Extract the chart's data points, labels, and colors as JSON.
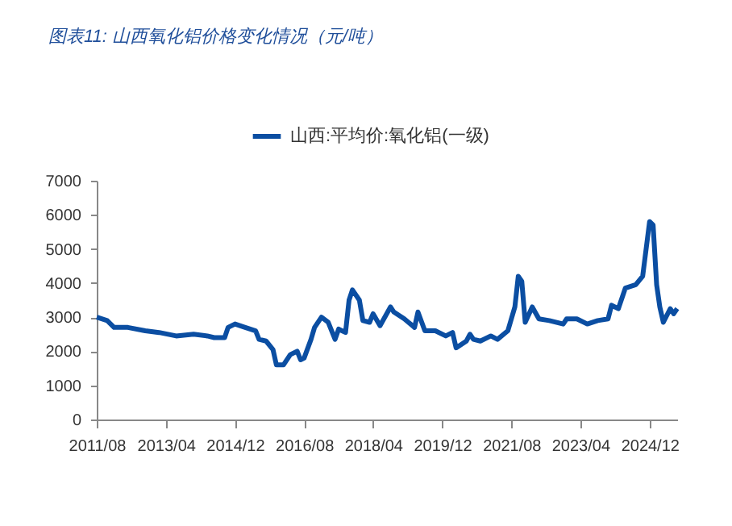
{
  "chart_data": {
    "type": "line",
    "title": "图表11:  山西氧化铝价格变化情况（元/吨）",
    "x": [
      "2011-08",
      "2011-11",
      "2012-01",
      "2012-05",
      "2012-10",
      "2013-02",
      "2013-07",
      "2013-12",
      "2014-04",
      "2014-06",
      "2014-09",
      "2014-10",
      "2014-12",
      "2015-03",
      "2015-06",
      "2015-07",
      "2015-09",
      "2015-11",
      "2015-12",
      "2016-02",
      "2016-04",
      "2016-06",
      "2016-07",
      "2016-08",
      "2016-10",
      "2016-11",
      "2017-01",
      "2017-03",
      "2017-05",
      "2017-06",
      "2017-08",
      "2017-09",
      "2017-10",
      "2017-12",
      "2018-01",
      "2018-03",
      "2018-04",
      "2018-06",
      "2018-09",
      "2018-10",
      "2019-01",
      "2019-04",
      "2019-05",
      "2019-07",
      "2019-10",
      "2020-01",
      "2020-03",
      "2020-04",
      "2020-07",
      "2020-08",
      "2020-09",
      "2020-11",
      "2021-02",
      "2021-04",
      "2021-07",
      "2021-09",
      "2021-10",
      "2021-11",
      "2021-12",
      "2022-02",
      "2022-04",
      "2022-07",
      "2022-11",
      "2022-12",
      "2023-03",
      "2023-06",
      "2023-09",
      "2023-12",
      "2024-01",
      "2024-03",
      "2024-05",
      "2024-08",
      "2024-10",
      "2024-12",
      "2025-01",
      "2025-02",
      "2025-03",
      "2025-04",
      "2025-06",
      "2025-07",
      "2025-08"
    ],
    "series": [
      {
        "name": "山西:平均价:氧化铝(一级)",
        "color": "#0b4ea2",
        "values": [
          3000,
          2900,
          2700,
          2700,
          2600,
          2550,
          2450,
          2500,
          2450,
          2400,
          2400,
          2700,
          2800,
          2700,
          2600,
          2350,
          2300,
          2050,
          1600,
          1600,
          1900,
          2000,
          1750,
          1800,
          2350,
          2700,
          3000,
          2850,
          2350,
          2650,
          2550,
          3500,
          3800,
          3500,
          2900,
          2850,
          3100,
          2750,
          3300,
          3150,
          2950,
          2700,
          3150,
          2600,
          2600,
          2450,
          2550,
          2100,
          2300,
          2500,
          2350,
          2300,
          2450,
          2350,
          2600,
          3300,
          4200,
          4050,
          2850,
          3300,
          2950,
          2900,
          2800,
          2950,
          2950,
          2800,
          2900,
          2950,
          3350,
          3250,
          3850,
          3950,
          4200,
          5800,
          5700,
          3950,
          3300,
          2850,
          3250,
          3100,
          3250
        ]
      }
    ],
    "xlim": [
      "2011-08",
      "2025-08"
    ],
    "xticks": [
      {
        "value": "2011-08",
        "label": "2011/08"
      },
      {
        "value": "2013-04",
        "label": "2013/04"
      },
      {
        "value": "2014-12",
        "label": "2014/12"
      },
      {
        "value": "2016-08",
        "label": "2016/08"
      },
      {
        "value": "2018-04",
        "label": "2018/04"
      },
      {
        "value": "2019-12",
        "label": "2019/12"
      },
      {
        "value": "2021-08",
        "label": "2021/08"
      },
      {
        "value": "2023-04",
        "label": "2023/04"
      },
      {
        "value": "2024-12",
        "label": "2024/12"
      }
    ],
    "ylim": [
      0,
      7000
    ],
    "yticks": [
      0,
      1000,
      2000,
      3000,
      4000,
      5000,
      6000,
      7000
    ],
    "grid": false,
    "legend": "top",
    "line_style": "solid",
    "marker": "none"
  }
}
